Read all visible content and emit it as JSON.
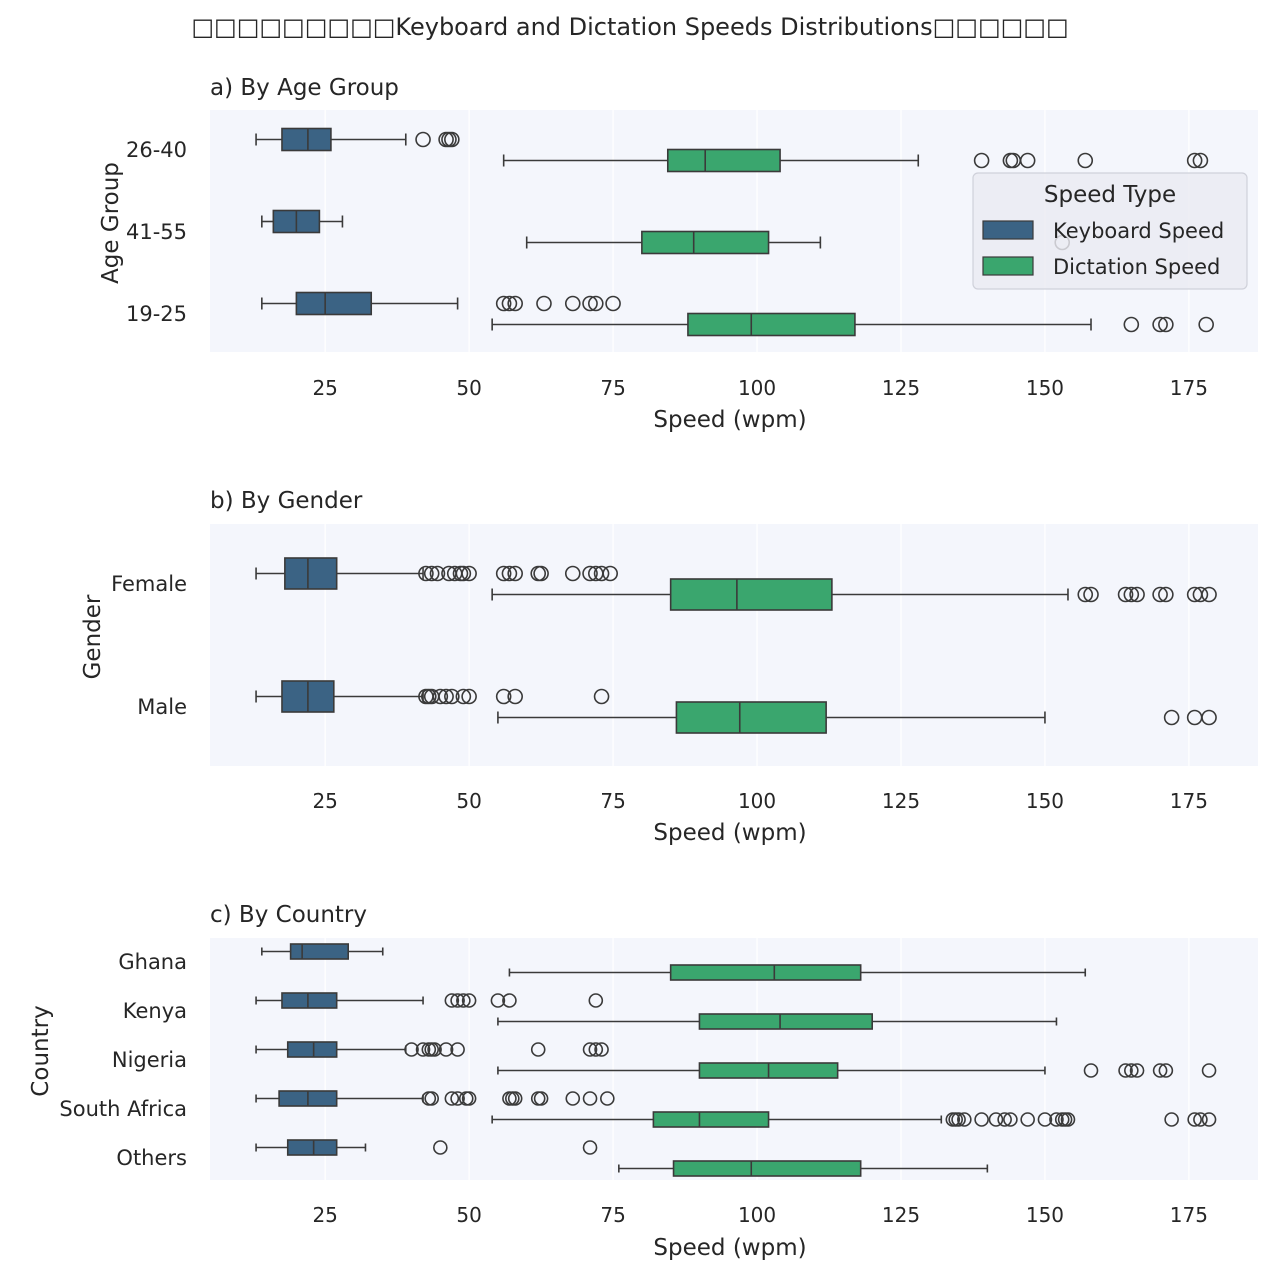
{
  "figure_title": "□□□□□□□□□Keyboard and Dictation Speeds Distributions□□□□□□",
  "legend": {
    "title": "Speed Type",
    "entries": [
      {
        "label": "Keyboard Speed",
        "color": "#3b6384"
      },
      {
        "label": "Dictation Speed",
        "color": "#3aa66e"
      }
    ]
  },
  "chart_data": [
    {
      "type": "box",
      "title": "a) By Age Group",
      "xlabel": "Speed (wpm)",
      "ylabel": "Age Group",
      "xlim": [
        5,
        187
      ],
      "xticks": [
        25,
        50,
        75,
        100,
        125,
        150,
        175
      ],
      "grid": "vertical",
      "legend_position": "upper-right",
      "categories": [
        "26-40",
        "41-55",
        "19-25"
      ],
      "series": [
        {
          "name": "Keyboard Speed",
          "boxes": [
            {
              "whislo": 13,
              "q1": 17.5,
              "med": 22,
              "q3": 26,
              "whishi": 39,
              "fliers": [
                42,
                46,
                46.5,
                47
              ]
            },
            {
              "whislo": 14,
              "q1": 16,
              "med": 20,
              "q3": 24,
              "whishi": 28,
              "fliers": []
            },
            {
              "whislo": 14,
              "q1": 20,
              "med": 25,
              "q3": 33,
              "whishi": 48,
              "fliers": [
                56,
                57,
                58,
                63,
                68,
                71,
                72,
                75
              ]
            }
          ]
        },
        {
          "name": "Dictation Speed",
          "boxes": [
            {
              "whislo": 56,
              "q1": 84.5,
              "med": 91,
              "q3": 104,
              "whishi": 128,
              "fliers": [
                139,
                144,
                144.5,
                147,
                157,
                176,
                177
              ]
            },
            {
              "whislo": 60,
              "q1": 80,
              "med": 89,
              "q3": 102,
              "whishi": 111,
              "fliers": [
                153
              ]
            },
            {
              "whislo": 54,
              "q1": 88,
              "med": 99,
              "q3": 117,
              "whishi": 158,
              "fliers": [
                165,
                170,
                171,
                178
              ]
            }
          ]
        }
      ]
    },
    {
      "type": "box",
      "title": "b) By Gender",
      "xlabel": "Speed (wpm)",
      "ylabel": "Gender",
      "xlim": [
        5,
        187
      ],
      "xticks": [
        25,
        50,
        75,
        100,
        125,
        150,
        175
      ],
      "grid": "vertical",
      "categories": [
        "Female",
        "Male"
      ],
      "series": [
        {
          "name": "Keyboard Speed",
          "boxes": [
            {
              "whislo": 13,
              "q1": 18,
              "med": 22,
              "q3": 27,
              "whishi": 42,
              "fliers": [
                42.5,
                43.5,
                44.5,
                46.5,
                47.5,
                48.5,
                49,
                50,
                56,
                57,
                58,
                62,
                62.5,
                68,
                71,
                72,
                73,
                74.5
              ]
            },
            {
              "whislo": 13,
              "q1": 17.5,
              "med": 22,
              "q3": 26.5,
              "whishi": 42,
              "fliers": [
                42.5,
                43,
                43.5,
                45,
                46,
                47,
                49,
                50,
                56,
                58,
                73
              ]
            }
          ]
        },
        {
          "name": "Dictation Speed",
          "boxes": [
            {
              "whislo": 54,
              "q1": 85,
              "med": 96.5,
              "q3": 113,
              "whishi": 154,
              "fliers": [
                157,
                158,
                164,
                165,
                166,
                170,
                171,
                176,
                177,
                178.5
              ]
            },
            {
              "whislo": 55,
              "q1": 86,
              "med": 97,
              "q3": 112,
              "whishi": 150,
              "fliers": [
                172,
                176,
                178.5
              ]
            }
          ]
        }
      ]
    },
    {
      "type": "box",
      "title": "c) By Country",
      "xlabel": "Speed (wpm)",
      "ylabel": "Country",
      "xlim": [
        5,
        187
      ],
      "xticks": [
        25,
        50,
        75,
        100,
        125,
        150,
        175
      ],
      "grid": "vertical",
      "categories": [
        "Ghana",
        "Kenya",
        "Nigeria",
        "South Africa",
        "Others"
      ],
      "series": [
        {
          "name": "Keyboard Speed",
          "boxes": [
            {
              "whislo": 14,
              "q1": 19,
              "med": 21,
              "q3": 29,
              "whishi": 35,
              "fliers": []
            },
            {
              "whislo": 13,
              "q1": 17.5,
              "med": 22,
              "q3": 27,
              "whishi": 42,
              "fliers": [
                47,
                48,
                49,
                50,
                55,
                57,
                72
              ]
            },
            {
              "whislo": 13,
              "q1": 18.5,
              "med": 23,
              "q3": 27,
              "whishi": 39,
              "fliers": [
                40,
                42,
                43,
                43.5,
                44,
                46,
                48,
                62,
                71,
                72,
                73
              ]
            },
            {
              "whislo": 13,
              "q1": 17,
              "med": 22,
              "q3": 27,
              "whishi": 42,
              "fliers": [
                43,
                43.5,
                47,
                48,
                49.5,
                50,
                57,
                57.5,
                58,
                62,
                62.5,
                68,
                71,
                74
              ]
            },
            {
              "whislo": 13,
              "q1": 18.5,
              "med": 23,
              "q3": 27,
              "whishi": 32,
              "fliers": [
                45,
                71
              ]
            }
          ]
        },
        {
          "name": "Dictation Speed",
          "boxes": [
            {
              "whislo": 57,
              "q1": 85,
              "med": 103,
              "q3": 118,
              "whishi": 157,
              "fliers": []
            },
            {
              "whislo": 55,
              "q1": 90,
              "med": 104,
              "q3": 120,
              "whishi": 152,
              "fliers": []
            },
            {
              "whislo": 55,
              "q1": 90,
              "med": 102,
              "q3": 114,
              "whishi": 150,
              "fliers": [
                158,
                164,
                165,
                166,
                170,
                171,
                178.5
              ]
            },
            {
              "whislo": 54,
              "q1": 82,
              "med": 90,
              "q3": 102,
              "whishi": 132,
              "fliers": [
                134,
                134.5,
                135,
                136,
                139,
                141.5,
                143,
                144,
                147,
                150,
                152,
                153,
                153.5,
                154,
                172,
                176,
                177,
                178.5
              ]
            },
            {
              "whislo": 76,
              "q1": 85.5,
              "med": 99,
              "q3": 118,
              "whishi": 140,
              "fliers": []
            }
          ]
        }
      ]
    }
  ]
}
